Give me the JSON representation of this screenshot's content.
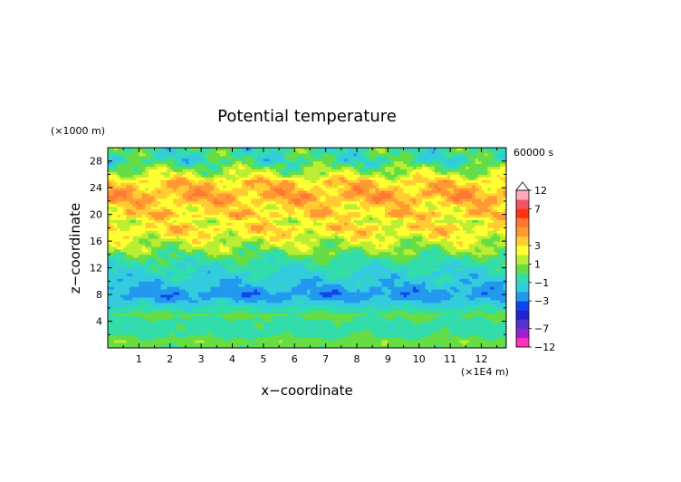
{
  "chart_data": {
    "type": "heatmap",
    "title": "Potential temperature",
    "xlabel": "x−coordinate",
    "ylabel": "z−coordinate",
    "x_unit": "(×1E4 m)",
    "y_unit": "(×1000 m)",
    "time_label": "60000 s",
    "xlim": [
      0,
      12.8
    ],
    "ylim": [
      0,
      30
    ],
    "x_ticks": [
      "1",
      "2",
      "3",
      "4",
      "5",
      "6",
      "7",
      "8",
      "9",
      "10",
      "11",
      "12"
    ],
    "y_ticks": [
      "4",
      "8",
      "12",
      "16",
      "20",
      "24",
      "28"
    ],
    "colorbar": {
      "levels": [
        -12,
        -9,
        -7,
        -5,
        -4,
        -3,
        -2,
        -1,
        0,
        1,
        2,
        3,
        4,
        5,
        6,
        7,
        9,
        12
      ],
      "colors": [
        "#ff33bb",
        "#9922cc",
        "#5533cc",
        "#2222cc",
        "#1144ee",
        "#2299ee",
        "#33ccdd",
        "#33ddaa",
        "#66dd44",
        "#bbee33",
        "#ffff33",
        "#ffcc33",
        "#ff9933",
        "#ff7733",
        "#ff3311",
        "#ee5566",
        "#ffaabb"
      ],
      "tick_labels": [
        "12",
        "7",
        "3",
        "1",
        "−1",
        "−3",
        "−7",
        "−12"
      ],
      "tick_values": [
        12,
        7,
        3,
        1,
        -1,
        -3,
        -7,
        -12
      ]
    },
    "profile": {
      "z": [
        0,
        1,
        2,
        3,
        4,
        5,
        6,
        7,
        8,
        9,
        10,
        11,
        12,
        13,
        14,
        15,
        16,
        17,
        18,
        19,
        20,
        21,
        22,
        23,
        24,
        25,
        26,
        27,
        28,
        29,
        30
      ],
      "theta": [
        0.3,
        0.6,
        -0.3,
        -0.5,
        -0.4,
        0.3,
        -0.8,
        -1.8,
        -2.6,
        -2.1,
        -1.6,
        -1.2,
        -0.8,
        -0.4,
        0.3,
        1.1,
        1.6,
        2.5,
        3.2,
        2.2,
        3.6,
        2.8,
        3.8,
        4.2,
        3.6,
        3.4,
        1.6,
        0.7,
        -0.6,
        -0.4,
        -0.3
      ]
    }
  }
}
